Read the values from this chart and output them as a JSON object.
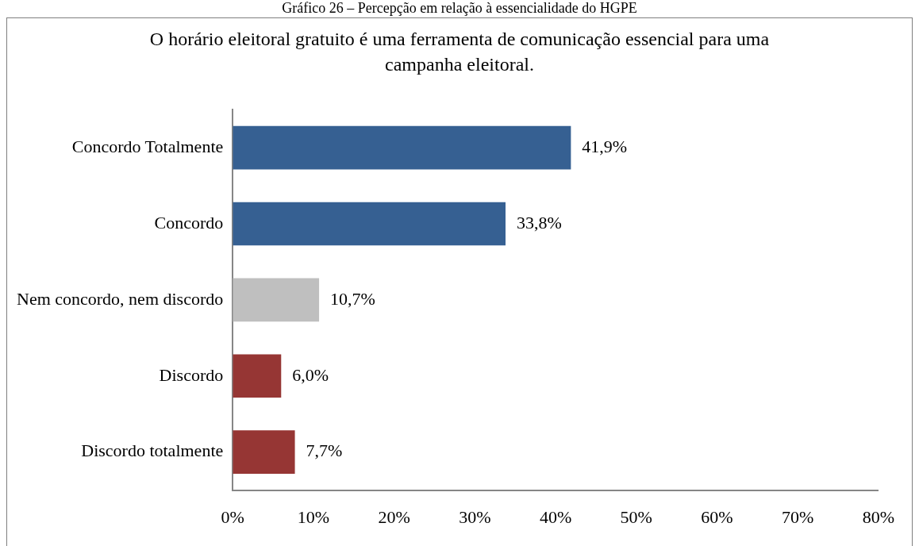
{
  "chart_data": {
    "type": "bar",
    "orientation": "horizontal",
    "title": "O horário eleitoral gratuito é uma ferramenta de comunicação essencial para uma campanha eleitoral.",
    "annotations": [
      "Gráfico 26 – Percepção em relação à essencialidade do HGPE"
    ],
    "categories": [
      "Concordo Totalmente",
      "Concordo",
      "Nem concordo, nem discordo",
      "Discordo",
      "Discordo totalmente"
    ],
    "values": [
      41.9,
      33.8,
      10.7,
      6.0,
      7.7
    ],
    "value_labels": [
      "41,9%",
      "33,8%",
      "10,7%",
      "6,0%",
      "7,7%"
    ],
    "colors": [
      "#366092",
      "#366092",
      "#bfbfbf",
      "#963634",
      "#963634"
    ],
    "xlim": [
      0,
      80
    ],
    "xticks": [
      {
        "value": 0,
        "label": "0%"
      },
      {
        "value": 10,
        "label": "10%"
      },
      {
        "value": 20,
        "label": "20%"
      },
      {
        "value": 30,
        "label": "30%"
      },
      {
        "value": 40,
        "label": "40%"
      },
      {
        "value": 50,
        "label": "50%"
      },
      {
        "value": 60,
        "label": "60%"
      },
      {
        "value": 70,
        "label": "70%"
      },
      {
        "value": 80,
        "label": "80%"
      }
    ],
    "grid": false,
    "legend": false
  }
}
